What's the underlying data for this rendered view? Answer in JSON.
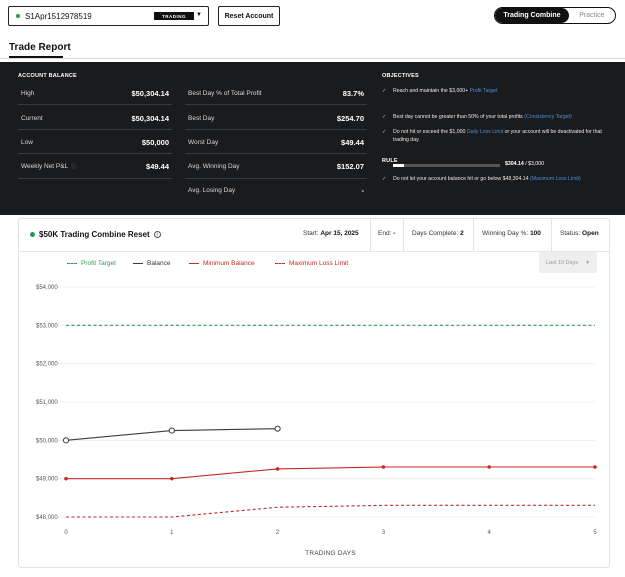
{
  "topbar": {
    "account_id": "S1Apr1512978519",
    "account_badge": "TRADING",
    "reset_label": "Reset Account",
    "modes": [
      "Trading Combine",
      "Practice"
    ]
  },
  "report_title": "Trade Report",
  "account_balance": {
    "heading": "ACCOUNT BALANCE",
    "rows": [
      {
        "label": "High",
        "value": "$50,304.14"
      },
      {
        "label": "Current",
        "value": "$50,304.14"
      },
      {
        "label": "Low",
        "value": "$50,000"
      },
      {
        "label": "Weekly Net P&L",
        "value": "$49.44"
      }
    ]
  },
  "profit_stats": {
    "rows": [
      {
        "label": "Best Day % of Total Profit",
        "value": "83.7%"
      },
      {
        "label": "Best Day",
        "value": "$254.70"
      },
      {
        "label": "Worst Day",
        "value": "$49.44"
      },
      {
        "label": "Avg. Winning Day",
        "value": "$152.07"
      },
      {
        "label": "Avg. Losing Day",
        "value": "-"
      }
    ]
  },
  "objectives": {
    "heading": "OBJECTIVES",
    "item1_text": "Reach and maintain the $3,000+",
    "item1_link": "Profit Target",
    "progress_current": "$304.14",
    "progress_target": " / $3,000",
    "progress_fraction": 0.101,
    "item2_text": "Best day cannot be greater than 50% of your total profits",
    "item2_link": "(Consistency Target)",
    "item3_text_a": "Do not hit or exceed the $1,000",
    "item3_link": "Daily Loss Limit",
    "item3_text_b": "or your account will be deactivated for that trading day."
  },
  "rule": {
    "heading": "RULE",
    "text": "Do not let your account balance hit or go below $48,304.14",
    "link": "(Maximum Loss Limit)"
  },
  "card": {
    "title": "$50K Trading Combine Reset",
    "start_label": "Start:",
    "start_value": "Apr 15, 2025",
    "end_label": "End:",
    "end_value": "-",
    "days_label": "Days Complete:",
    "days_value": "2",
    "winning_label": "Winning Day %:",
    "winning_value": "100",
    "status_label": "Status:",
    "status_value": "Open",
    "range_label": "Last 10 Days"
  },
  "chart_data": {
    "type": "line",
    "xlabel": "TRADING DAYS",
    "ylabel": "",
    "x_ticks": [
      0,
      1,
      2,
      3,
      4,
      5
    ],
    "y_ticks": [
      "$48,000",
      "$49,000",
      "$50,000",
      "$51,000",
      "$52,000",
      "$53,000",
      "$54,000"
    ],
    "ylim": [
      48000,
      54000
    ],
    "xlim": [
      0,
      5
    ],
    "grid": true,
    "legend_position": "top-left",
    "series": [
      {
        "name": "Profit Target",
        "style": "dashed",
        "color": "#2e9e4f",
        "x": [
          0,
          1,
          2,
          3,
          4,
          5
        ],
        "y": [
          53000,
          53000,
          53000,
          53000,
          53000,
          53000
        ]
      },
      {
        "name": "Balance",
        "style": "solid",
        "color": "#3a3d44",
        "markers": "hollow",
        "x": [
          0,
          1,
          2
        ],
        "y": [
          50000,
          50254.7,
          50304.14
        ]
      },
      {
        "name": "Minimum Balance",
        "style": "solid",
        "color": "#c42b26",
        "markers": "filled",
        "x": [
          0,
          1,
          2,
          3,
          4,
          5
        ],
        "y": [
          49000,
          49000,
          49254.7,
          49304.14,
          49304.14,
          49304.14
        ]
      },
      {
        "name": "Maximum Loss Limit",
        "style": "dashed",
        "color": "#c42b26",
        "x": [
          0,
          1,
          2,
          3,
          4,
          5
        ],
        "y": [
          48000,
          48000,
          48254.7,
          48304.14,
          48304.14,
          48304.14
        ]
      }
    ]
  }
}
